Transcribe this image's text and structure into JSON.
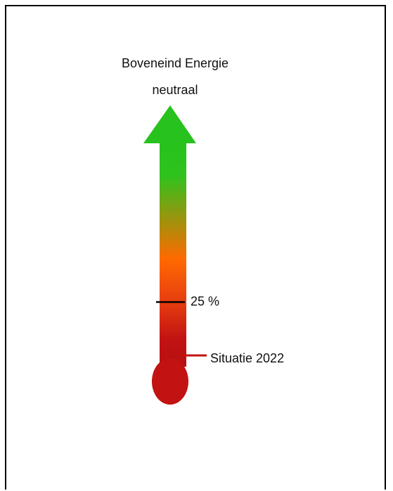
{
  "title_line1": "Boveneind Energie",
  "title_line2": "neutraal",
  "marker_label": "25 %",
  "marker_value_percent": 25,
  "base_label": "Situatie 2022",
  "colors": {
    "top": "#27c21d",
    "middle": "#ff6a00",
    "bottom": "#c21212",
    "marker": "#000000",
    "base_tick": "#c21212"
  }
}
